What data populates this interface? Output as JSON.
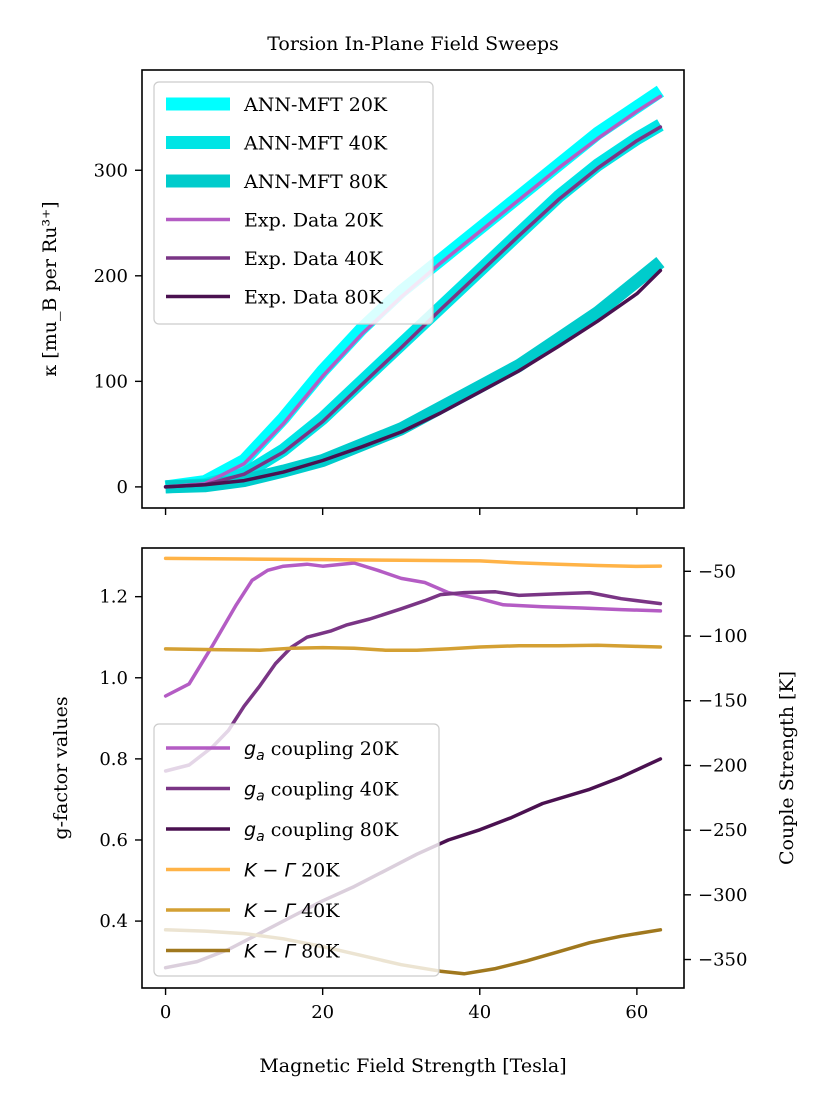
{
  "chart_data": {
    "type": "line",
    "x_label": "Magnetic Field Strength [Tesla]",
    "x_ticks": [
      "0",
      "20",
      "40",
      "60"
    ],
    "x_tick_values": [
      0,
      20,
      40,
      60
    ],
    "xlim": [
      -3,
      66
    ],
    "top": {
      "title": "Torsion In-Plane Field Sweeps",
      "ylabel": "κ [mu_B per Ru³⁺]",
      "ylim": [
        -20,
        395
      ],
      "y_ticks": [
        "0",
        "100",
        "200",
        "300"
      ],
      "y_tick_values": [
        0,
        100,
        200,
        300
      ],
      "legend_position": "upper-left",
      "series": [
        {
          "name": "ANN-MFT 20K",
          "style": "thick",
          "color": "#00ffff",
          "x": [
            0,
            5,
            10,
            15,
            20,
            25,
            30,
            35,
            40,
            45,
            50,
            55,
            60,
            63
          ],
          "y": [
            0,
            5,
            25,
            65,
            110,
            150,
            185,
            215,
            245,
            275,
            305,
            335,
            360,
            375
          ]
        },
        {
          "name": "ANN-MFT 40K",
          "style": "thick",
          "color": "#00e5e5",
          "x": [
            0,
            5,
            10,
            15,
            20,
            25,
            30,
            35,
            40,
            45,
            50,
            55,
            60,
            63
          ],
          "y": [
            0,
            2,
            12,
            35,
            65,
            100,
            135,
            170,
            205,
            240,
            275,
            305,
            330,
            343
          ]
        },
        {
          "name": "ANN-MFT 80K",
          "style": "thick",
          "color": "#00cccc",
          "x": [
            0,
            5,
            10,
            15,
            20,
            25,
            30,
            35,
            40,
            45,
            50,
            55,
            60,
            63
          ],
          "y": [
            0,
            1,
            6,
            15,
            25,
            40,
            55,
            75,
            95,
            115,
            140,
            165,
            195,
            213
          ]
        },
        {
          "name": "Exp. Data 20K",
          "style": "thin",
          "color": "#b45cc4",
          "x": [
            0,
            5,
            10,
            15,
            20,
            25,
            30,
            35,
            40,
            45,
            50,
            55,
            60,
            63
          ],
          "y": [
            0,
            3,
            22,
            60,
            105,
            145,
            180,
            212,
            242,
            272,
            302,
            330,
            356,
            370
          ]
        },
        {
          "name": "Exp. Data 40K",
          "style": "thin",
          "color": "#7a3585",
          "x": [
            0,
            5,
            10,
            15,
            20,
            25,
            30,
            35,
            40,
            45,
            50,
            55,
            60,
            63
          ],
          "y": [
            0,
            2,
            12,
            33,
            62,
            97,
            132,
            168,
            203,
            238,
            272,
            302,
            328,
            341
          ]
        },
        {
          "name": "Exp. Data 80K",
          "style": "thin",
          "color": "#4a1150",
          "x": [
            0,
            5,
            10,
            15,
            20,
            25,
            30,
            35,
            40,
            45,
            50,
            55,
            60,
            63
          ],
          "y": [
            0,
            2,
            6,
            14,
            25,
            38,
            52,
            70,
            90,
            110,
            133,
            157,
            183,
            205
          ]
        }
      ]
    },
    "bottom": {
      "ylabel_left": "g-factor values",
      "ylabel_right": "Couple Strength [K]",
      "ylim_left": [
        0.235,
        1.32
      ],
      "ylim_right": [
        -372,
        -32
      ],
      "y_ticks_left": [
        "0.4",
        "0.6",
        "0.8",
        "1.0",
        "1.2"
      ],
      "y_tick_values_left": [
        0.4,
        0.6,
        0.8,
        1.0,
        1.2
      ],
      "y_ticks_right": [
        "−50",
        "−100",
        "−150",
        "−200",
        "−250",
        "−300",
        "−350"
      ],
      "y_tick_values_right": [
        -50,
        -100,
        -150,
        -200,
        -250,
        -300,
        -350
      ],
      "legend_position": "lower-left",
      "series": [
        {
          "name": "g_a coupling 20K",
          "label_symbol": "g",
          "label_sub": "a",
          "label_rest": " coupling 20K",
          "axis": "left",
          "color": "#b45cc4",
          "x": [
            0,
            3,
            6,
            9,
            11,
            13,
            15,
            18,
            20,
            24,
            27,
            30,
            33,
            36,
            40,
            43,
            48,
            53,
            58,
            63
          ],
          "y": [
            0.955,
            0.985,
            1.08,
            1.18,
            1.24,
            1.265,
            1.275,
            1.28,
            1.275,
            1.283,
            1.265,
            1.245,
            1.235,
            1.21,
            1.195,
            1.18,
            1.175,
            1.172,
            1.168,
            1.165
          ]
        },
        {
          "name": "g_a coupling 40K",
          "label_symbol": "g",
          "label_sub": "a",
          "label_rest": " coupling 40K",
          "axis": "left",
          "color": "#7a3585",
          "x": [
            0,
            3,
            6,
            8,
            10,
            12,
            14,
            16,
            18,
            21,
            23,
            26,
            30,
            33,
            35,
            38,
            42,
            45,
            50,
            54,
            58,
            63
          ],
          "y": [
            0.77,
            0.785,
            0.83,
            0.87,
            0.93,
            0.98,
            1.035,
            1.075,
            1.1,
            1.115,
            1.13,
            1.145,
            1.17,
            1.19,
            1.205,
            1.21,
            1.212,
            1.203,
            1.207,
            1.21,
            1.195,
            1.183
          ]
        },
        {
          "name": "g_a coupling 80K",
          "label_symbol": "g",
          "label_sub": "a",
          "label_rest": " coupling 80K",
          "axis": "left",
          "color": "#4a1150",
          "x": [
            0,
            4,
            8,
            12,
            16,
            20,
            24,
            28,
            32,
            36,
            40,
            44,
            48,
            54,
            58,
            63
          ],
          "y": [
            0.285,
            0.3,
            0.33,
            0.37,
            0.41,
            0.45,
            0.485,
            0.525,
            0.565,
            0.6,
            0.625,
            0.655,
            0.69,
            0.725,
            0.755,
            0.8
          ]
        },
        {
          "name": "K − Γ 20K",
          "label_symbol": "K − Γ",
          "label_sub": "",
          "label_rest": " 20K",
          "axis": "right",
          "color": "#ffb347",
          "x": [
            0,
            10,
            20,
            30,
            40,
            45,
            50,
            55,
            60,
            63
          ],
          "y": [
            -40,
            -40.5,
            -41,
            -41.5,
            -42,
            -43.5,
            -44.5,
            -45.5,
            -46.2,
            -46
          ]
        },
        {
          "name": "K − Γ 40K",
          "label_symbol": "K − Γ",
          "label_sub": "",
          "label_rest": " 40K",
          "axis": "right",
          "color": "#d4a033",
          "x": [
            0,
            6,
            12,
            16,
            20,
            24,
            28,
            32,
            36,
            40,
            45,
            50,
            55,
            60,
            63
          ],
          "y": [
            -110,
            -110.5,
            -111,
            -109.5,
            -109,
            -109.5,
            -111,
            -111,
            -110,
            -108.5,
            -107.5,
            -107.5,
            -107.2,
            -108,
            -108.5
          ]
        },
        {
          "name": "K − Γ 80K",
          "label_symbol": "K − Γ",
          "label_sub": "",
          "label_rest": " 80K",
          "axis": "right",
          "color": "#a0781e",
          "x": [
            0,
            5,
            10,
            15,
            20,
            25,
            30,
            35,
            38,
            42,
            46,
            50,
            54,
            58,
            63
          ],
          "y": [
            -327,
            -328,
            -330,
            -334,
            -340,
            -347,
            -354,
            -359,
            -361,
            -357,
            -351,
            -344,
            -337,
            -332,
            -327
          ]
        }
      ]
    }
  }
}
